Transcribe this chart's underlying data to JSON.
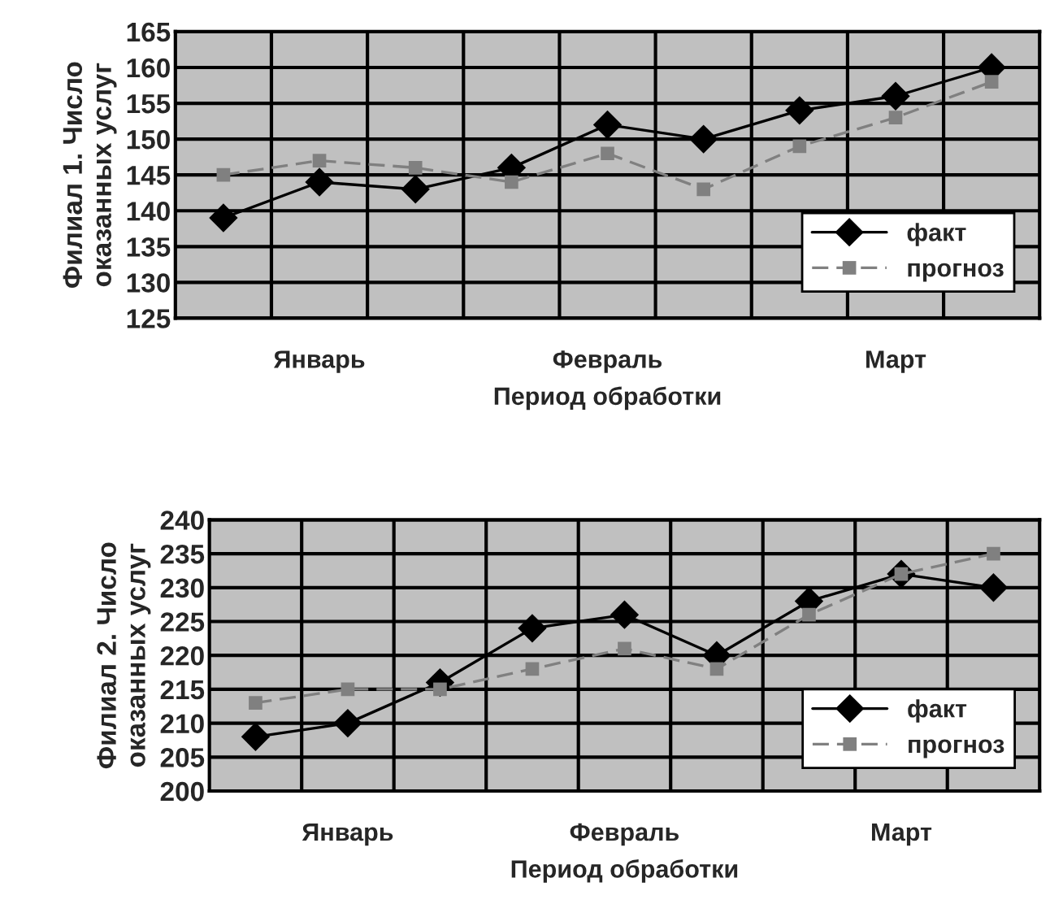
{
  "chart_data": [
    {
      "type": "line",
      "xlabel": "Период обработки",
      "ylabel": "Филиал 1. Число\nоказанных услуг",
      "categories": [
        null,
        "Январь",
        null,
        null,
        "Февраль",
        null,
        null,
        "Март",
        null
      ],
      "ylim": [
        125,
        165
      ],
      "yticks": [
        125,
        130,
        135,
        140,
        145,
        150,
        155,
        160,
        165
      ],
      "grid": true,
      "legend": "right",
      "series": [
        {
          "name": "факт",
          "color": "#000000",
          "marker": "diamond",
          "line_style": "solid",
          "values": [
            139,
            144,
            143,
            146,
            152,
            150,
            154,
            156,
            160
          ]
        },
        {
          "name": "прогноз",
          "color": "#808080",
          "marker": "square",
          "line_style": "dashed",
          "values": [
            145,
            147,
            146,
            144,
            148,
            143,
            149,
            153,
            158
          ]
        }
      ]
    },
    {
      "type": "line",
      "xlabel": "Период обработки",
      "ylabel": "Филиал 2. Число\nоказанных услуг",
      "categories": [
        null,
        "Январь",
        null,
        null,
        "Февраль",
        null,
        null,
        "Март",
        null
      ],
      "ylim": [
        200,
        240
      ],
      "yticks": [
        200,
        205,
        210,
        215,
        220,
        225,
        230,
        235,
        240
      ],
      "grid": true,
      "legend": "right",
      "series": [
        {
          "name": "факт",
          "color": "#000000",
          "marker": "diamond",
          "line_style": "solid",
          "values": [
            208,
            210,
            216,
            224,
            226,
            220,
            228,
            232,
            230
          ]
        },
        {
          "name": "прогноз",
          "color": "#808080",
          "marker": "square",
          "line_style": "dashed",
          "values": [
            213,
            215,
            215,
            218,
            221,
            218,
            226,
            232,
            235
          ]
        }
      ]
    }
  ]
}
